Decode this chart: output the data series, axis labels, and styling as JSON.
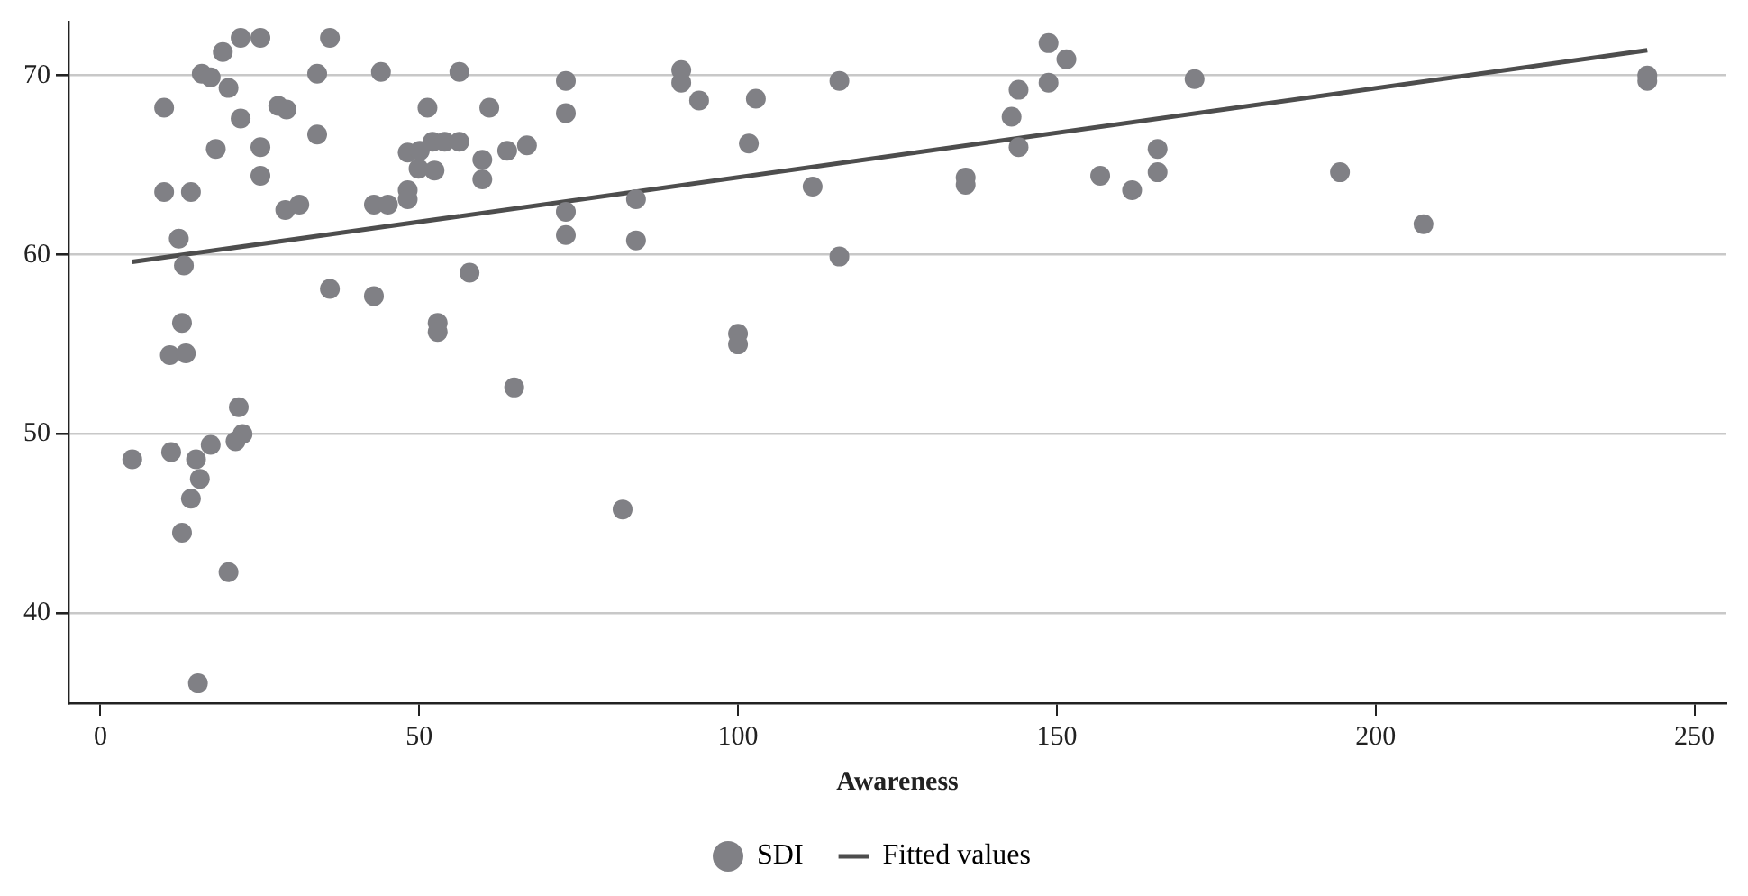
{
  "chart_data": {
    "type": "scatter",
    "xlabel": "Awareness",
    "xlim": [
      -5,
      255
    ],
    "xticks": [
      0,
      50,
      100,
      150,
      200,
      250
    ],
    "ylim": [
      35,
      73
    ],
    "yticks": [
      40,
      50,
      60,
      70
    ],
    "grid": "y",
    "legend": "bottom",
    "marker": "circle",
    "series": [
      {
        "name": "SDI",
        "color": "#808085",
        "x": [
          22.0,
          25.1,
          36.0,
          19.2,
          15.9,
          17.3,
          34.0,
          20.1,
          10.0,
          22.0,
          27.9,
          29.2,
          34.0,
          18.1,
          25.1,
          25.1,
          10.0,
          14.2,
          29.0,
          31.2,
          12.3,
          13.1,
          36.0,
          12.8,
          10.9,
          13.4,
          21.7,
          22.3,
          21.2,
          5.0,
          11.1,
          15.0,
          17.3,
          15.6,
          14.2,
          12.8,
          20.1,
          15.3,
          44.0,
          56.3,
          73.0,
          51.3,
          61.0,
          73.0,
          52.1,
          54.0,
          56.3,
          48.2,
          50.1,
          59.9,
          63.8,
          66.9,
          49.9,
          52.4,
          59.9,
          48.2,
          48.2,
          42.9,
          45.1,
          73.0,
          84.0,
          73.0,
          84.0,
          42.9,
          57.9,
          52.9,
          52.9,
          64.9,
          81.9,
          100.0,
          100.0,
          91.1,
          91.1,
          93.9,
          102.8,
          101.7,
          115.9,
          111.7,
          115.9,
          135.7,
          135.7,
          142.9,
          144.0,
          144.0,
          148.7,
          151.5,
          148.7,
          156.8,
          161.8,
          171.6,
          165.8,
          165.8,
          194.4,
          207.5,
          242.6,
          242.6
        ],
        "values": [
          72.1,
          72.1,
          72.1,
          71.3,
          70.1,
          69.9,
          70.1,
          69.3,
          68.2,
          67.6,
          68.3,
          68.1,
          66.7,
          65.9,
          66.0,
          64.4,
          63.5,
          63.5,
          62.5,
          62.8,
          60.9,
          59.4,
          58.1,
          56.2,
          54.4,
          54.5,
          51.5,
          50.0,
          49.6,
          48.6,
          49.0,
          48.6,
          49.4,
          47.5,
          46.4,
          44.5,
          42.3,
          36.1,
          70.2,
          70.2,
          69.7,
          68.2,
          68.2,
          67.9,
          66.3,
          66.3,
          66.3,
          65.7,
          65.8,
          65.3,
          65.8,
          66.1,
          64.8,
          64.7,
          64.2,
          63.6,
          63.1,
          62.8,
          62.8,
          62.4,
          63.1,
          61.1,
          60.8,
          57.7,
          59.0,
          56.2,
          55.7,
          52.6,
          45.8,
          55.6,
          55.0,
          70.3,
          69.6,
          68.6,
          68.7,
          66.2,
          69.7,
          63.8,
          59.9,
          64.3,
          63.9,
          67.7,
          69.2,
          66.0,
          71.8,
          70.9,
          69.6,
          64.4,
          63.6,
          69.8,
          65.9,
          64.6,
          64.6,
          61.7,
          70.0,
          69.7
        ]
      },
      {
        "name": "Fitted values",
        "type": "line",
        "color": "#4d4d4d",
        "marker": "none",
        "line_style": "solid",
        "x": [
          5.0,
          242.6
        ],
        "values": [
          59.6,
          71.4
        ]
      }
    ]
  }
}
